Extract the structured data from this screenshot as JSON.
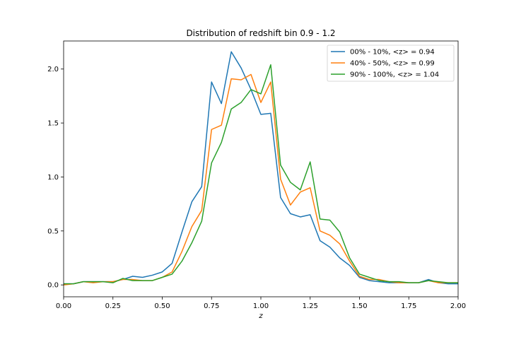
{
  "chart_data": {
    "type": "line",
    "title": "Distribution of redshift bin 0.9 - 1.2",
    "xlabel": "z",
    "ylabel": "",
    "xlim": [
      0.0,
      2.0
    ],
    "ylim": [
      -0.11,
      2.26
    ],
    "xticks": [
      0.0,
      0.25,
      0.5,
      0.75,
      1.0,
      1.25,
      1.5,
      1.75,
      2.0
    ],
    "xtick_labels": [
      "0.00",
      "0.25",
      "0.50",
      "0.75",
      "1.00",
      "1.25",
      "1.50",
      "1.75",
      "2.00"
    ],
    "yticks": [
      0.0,
      0.5,
      1.0,
      1.5,
      2.0
    ],
    "ytick_labels": [
      "0.0",
      "0.5",
      "1.0",
      "1.5",
      "2.0"
    ],
    "grid": false,
    "legend_position": "upper right",
    "x": [
      0.0,
      0.05,
      0.1,
      0.15,
      0.2,
      0.25,
      0.3,
      0.35,
      0.4,
      0.45,
      0.5,
      0.55,
      0.6,
      0.65,
      0.7,
      0.75,
      0.8,
      0.85,
      0.9,
      0.95,
      1.0,
      1.05,
      1.1,
      1.15,
      1.2,
      1.25,
      1.3,
      1.35,
      1.4,
      1.45,
      1.5,
      1.55,
      1.6,
      1.65,
      1.7,
      1.75,
      1.8,
      1.85,
      1.9,
      1.95,
      2.0
    ],
    "series": [
      {
        "name": "00% - 10%, <z> = 0.94",
        "color": "#1f77b4",
        "values": [
          0.01,
          0.01,
          0.03,
          0.03,
          0.03,
          0.03,
          0.05,
          0.08,
          0.07,
          0.09,
          0.12,
          0.2,
          0.49,
          0.77,
          0.91,
          1.88,
          1.68,
          2.16,
          2.01,
          1.81,
          1.58,
          1.59,
          0.81,
          0.66,
          0.63,
          0.65,
          0.41,
          0.35,
          0.25,
          0.18,
          0.07,
          0.04,
          0.03,
          0.02,
          0.02,
          0.02,
          0.02,
          0.05,
          0.02,
          0.01,
          0.01
        ]
      },
      {
        "name": "40% - 50%, <z> = 0.99",
        "color": "#ff7f0e",
        "values": [
          0.0,
          0.01,
          0.03,
          0.02,
          0.03,
          0.03,
          0.05,
          0.05,
          0.04,
          0.04,
          0.07,
          0.12,
          0.31,
          0.54,
          0.69,
          1.44,
          1.48,
          1.91,
          1.9,
          1.95,
          1.69,
          1.88,
          0.98,
          0.74,
          0.86,
          0.9,
          0.5,
          0.46,
          0.38,
          0.22,
          0.08,
          0.05,
          0.05,
          0.03,
          0.02,
          0.02,
          0.02,
          0.04,
          0.02,
          0.02,
          0.02
        ]
      },
      {
        "name": "90% - 100%, <z> = 1.04",
        "color": "#2ca02c",
        "values": [
          0.01,
          0.01,
          0.03,
          0.03,
          0.03,
          0.02,
          0.06,
          0.04,
          0.04,
          0.04,
          0.07,
          0.1,
          0.22,
          0.39,
          0.59,
          1.13,
          1.32,
          1.63,
          1.69,
          1.81,
          1.77,
          2.04,
          1.11,
          0.95,
          0.88,
          1.14,
          0.61,
          0.6,
          0.49,
          0.25,
          0.1,
          0.07,
          0.04,
          0.03,
          0.03,
          0.02,
          0.02,
          0.04,
          0.03,
          0.02,
          0.02
        ]
      }
    ]
  }
}
